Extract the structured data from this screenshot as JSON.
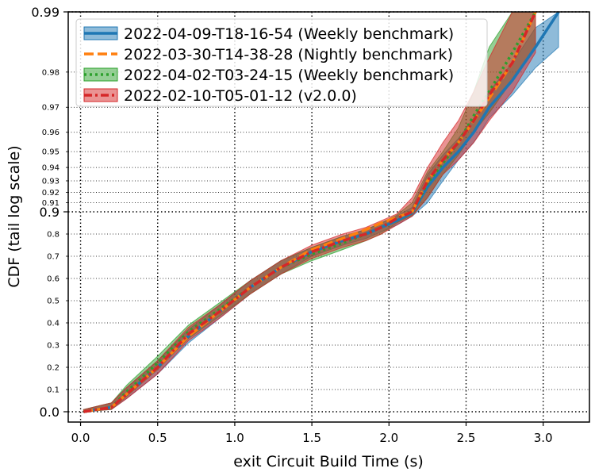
{
  "chart_data": {
    "type": "line",
    "title": "",
    "xlabel": "exit Circuit Build Time (s)",
    "ylabel": "CDF (tail log scale)",
    "xlim": [
      -0.08,
      3.3
    ],
    "x_ticks": [
      0.0,
      0.5,
      1.0,
      1.5,
      2.0,
      2.5,
      3.0
    ],
    "x_tick_labels": [
      "0.0",
      "0.5",
      "1.0",
      "1.5",
      "2.0",
      "2.5",
      "3.0"
    ],
    "y_scale": "tail log",
    "y_major_ticks": [
      0.0,
      0.9,
      0.99
    ],
    "y_major_tick_labels": [
      "0.0",
      "0.9",
      "0.99"
    ],
    "y_minor_ticks": [
      0.1,
      0.2,
      0.3,
      0.4,
      0.5,
      0.6,
      0.7,
      0.8,
      0.91,
      0.92,
      0.93,
      0.94,
      0.95,
      0.96,
      0.97,
      0.98
    ],
    "y_minor_tick_labels": [
      "0.1",
      "0.2",
      "0.3",
      "0.4",
      "0.5",
      "0.6",
      "0.7",
      "0.8",
      "0.91",
      "0.92",
      "0.93",
      "0.94",
      "0.95",
      "0.96",
      "0.97",
      "0.98"
    ],
    "grid": true,
    "legend_position": "top-left",
    "series": [
      {
        "name": "2022-04-09-T18-16-54 (Weekly benchmark)",
        "color": "#1f77b4",
        "linestyle": "solid",
        "x": [
          0.02,
          0.2,
          0.3,
          0.5,
          0.7,
          0.9,
          1.1,
          1.3,
          1.5,
          1.7,
          1.85,
          1.95,
          2.05,
          2.15,
          2.25,
          2.35,
          2.45,
          2.55,
          2.65,
          2.8,
          2.95,
          3.1
        ],
        "y": [
          0.0,
          0.02,
          0.08,
          0.2,
          0.34,
          0.45,
          0.56,
          0.65,
          0.72,
          0.77,
          0.8,
          0.83,
          0.86,
          0.895,
          0.925,
          0.94,
          0.95,
          0.96,
          0.97,
          0.978,
          0.985,
          0.99
        ],
        "band": {
          "lower": [
            0.0,
            0.01,
            0.06,
            0.17,
            0.31,
            0.42,
            0.53,
            0.62,
            0.7,
            0.75,
            0.78,
            0.81,
            0.84,
            0.88,
            0.91,
            0.93,
            0.945,
            0.955,
            0.966,
            0.974,
            0.981,
            0.985
          ],
          "upper": [
            0.01,
            0.04,
            0.11,
            0.23,
            0.37,
            0.48,
            0.59,
            0.68,
            0.74,
            0.79,
            0.82,
            0.85,
            0.88,
            0.905,
            0.935,
            0.948,
            0.957,
            0.966,
            0.975,
            0.982,
            0.988,
            0.99
          ]
        }
      },
      {
        "name": "2022-03-30-T14-38-28 (Nightly benchmark)",
        "color": "#ff7f0e",
        "linestyle": "dashed",
        "x": [
          0.02,
          0.2,
          0.3,
          0.5,
          0.7,
          0.9,
          1.1,
          1.3,
          1.5,
          1.7,
          1.85,
          1.95,
          2.05,
          2.15,
          2.25,
          2.35,
          2.45,
          2.55,
          2.65,
          2.8,
          2.95
        ],
        "y": [
          0.0,
          0.02,
          0.08,
          0.2,
          0.34,
          0.45,
          0.56,
          0.65,
          0.73,
          0.78,
          0.82,
          0.85,
          0.875,
          0.9,
          0.93,
          0.945,
          0.955,
          0.965,
          0.973,
          0.982,
          0.99
        ]
      },
      {
        "name": "2022-04-02-T03-24-15 (Weekly benchmark)",
        "color": "#2ca02c",
        "linestyle": "dotted",
        "x": [
          0.02,
          0.2,
          0.3,
          0.5,
          0.7,
          0.9,
          1.1,
          1.3,
          1.5,
          1.7,
          1.85,
          1.95,
          2.05,
          2.15,
          2.25,
          2.35,
          2.45,
          2.55,
          2.65,
          2.8,
          2.95
        ],
        "y": [
          0.0,
          0.02,
          0.09,
          0.22,
          0.36,
          0.46,
          0.56,
          0.65,
          0.71,
          0.76,
          0.8,
          0.83,
          0.87,
          0.9,
          0.928,
          0.943,
          0.955,
          0.967,
          0.975,
          0.984,
          0.99
        ],
        "band": {
          "lower": [
            0.0,
            0.01,
            0.07,
            0.19,
            0.33,
            0.43,
            0.53,
            0.62,
            0.68,
            0.73,
            0.77,
            0.8,
            0.85,
            0.885,
            0.915,
            0.935,
            0.948,
            0.96,
            0.968,
            0.978,
            0.985
          ],
          "upper": [
            0.01,
            0.04,
            0.12,
            0.25,
            0.39,
            0.49,
            0.59,
            0.68,
            0.74,
            0.79,
            0.82,
            0.85,
            0.885,
            0.91,
            0.937,
            0.95,
            0.962,
            0.975,
            0.985,
            0.99,
            0.99
          ]
        }
      },
      {
        "name": "2022-02-10-T05-01-12 (v2.0.0)",
        "color": "#d62728",
        "linestyle": "dashdot",
        "x": [
          0.02,
          0.2,
          0.3,
          0.5,
          0.7,
          0.9,
          1.1,
          1.3,
          1.5,
          1.7,
          1.85,
          1.95,
          2.05,
          2.15,
          2.25,
          2.35,
          2.45,
          2.55,
          2.65,
          2.8,
          2.95
        ],
        "y": [
          0.0,
          0.02,
          0.08,
          0.2,
          0.35,
          0.45,
          0.56,
          0.65,
          0.72,
          0.77,
          0.8,
          0.83,
          0.87,
          0.9,
          0.93,
          0.945,
          0.955,
          0.965,
          0.974,
          0.982,
          0.99
        ],
        "band": {
          "lower": [
            0.0,
            0.01,
            0.06,
            0.17,
            0.32,
            0.42,
            0.53,
            0.62,
            0.69,
            0.74,
            0.77,
            0.8,
            0.84,
            0.88,
            0.915,
            0.935,
            0.945,
            0.955,
            0.965,
            0.975,
            0.984
          ],
          "upper": [
            0.01,
            0.04,
            0.11,
            0.23,
            0.38,
            0.48,
            0.59,
            0.68,
            0.75,
            0.8,
            0.83,
            0.86,
            0.89,
            0.915,
            0.94,
            0.955,
            0.965,
            0.975,
            0.983,
            0.99,
            0.99
          ]
        }
      }
    ]
  }
}
